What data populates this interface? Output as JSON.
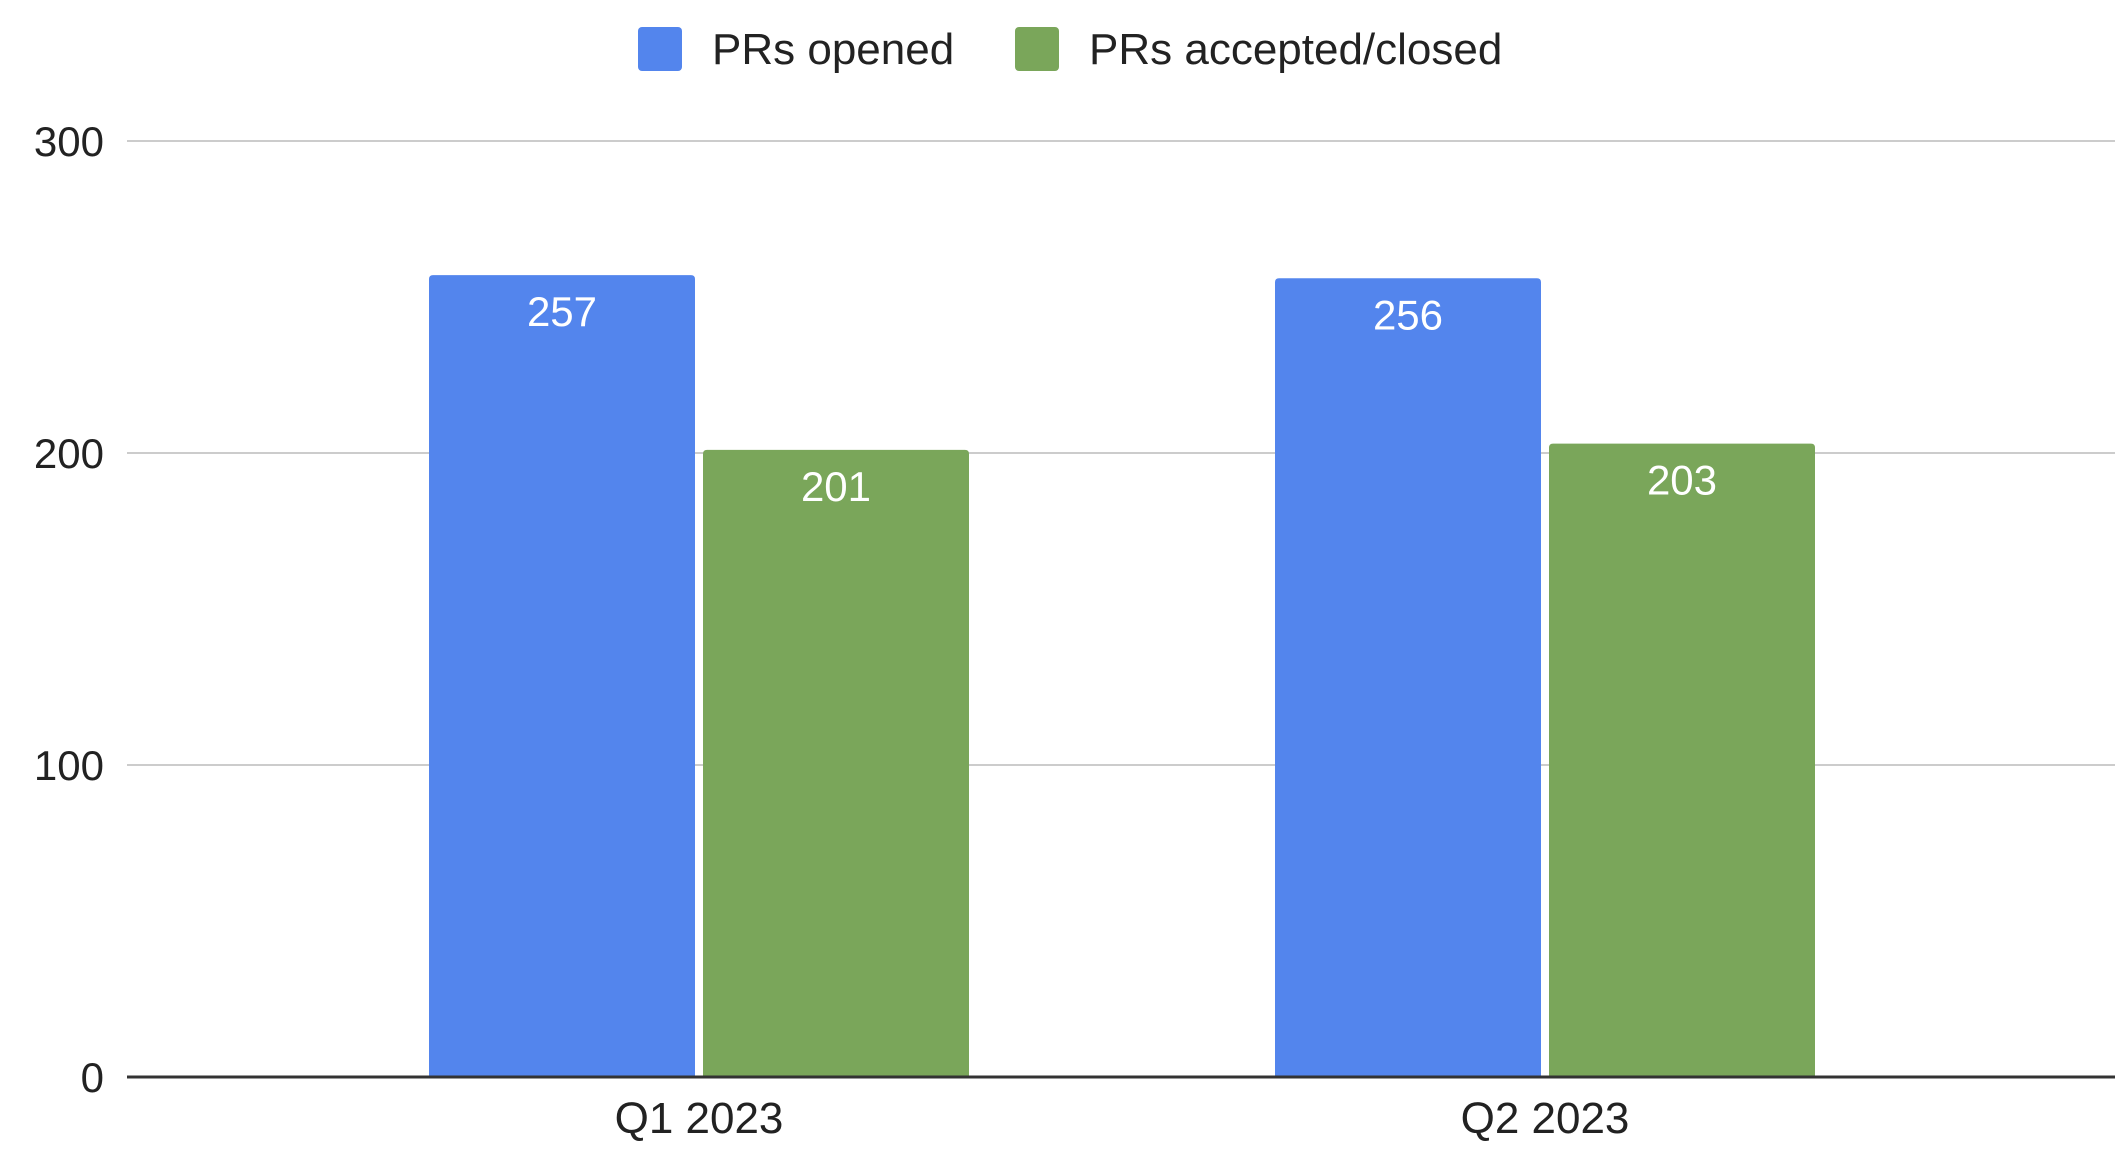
{
  "chart_data": {
    "type": "bar",
    "title": "",
    "xlabel": "",
    "ylabel": "",
    "categories": [
      "Q1 2023",
      "Q2 2023"
    ],
    "series": [
      {
        "name": "PRs opened",
        "values": [
          257,
          256
        ],
        "color": "#5385ED"
      },
      {
        "name": "PRs accepted/closed",
        "values": [
          201,
          203
        ],
        "color": "#7AA65A"
      }
    ],
    "data_labels": [
      [
        "257",
        "256"
      ],
      [
        "201",
        "203"
      ]
    ],
    "ylim": [
      0,
      300
    ],
    "yticks": [
      0,
      100,
      200,
      300
    ],
    "ytick_labels": [
      "0",
      "100",
      "200",
      "300"
    ],
    "grid": true,
    "legend_position": "top-center",
    "colors": {
      "gridline": "#CCCCCC",
      "axis": "#333333",
      "label_text": "#FFFFFF",
      "text": "#222222"
    }
  }
}
